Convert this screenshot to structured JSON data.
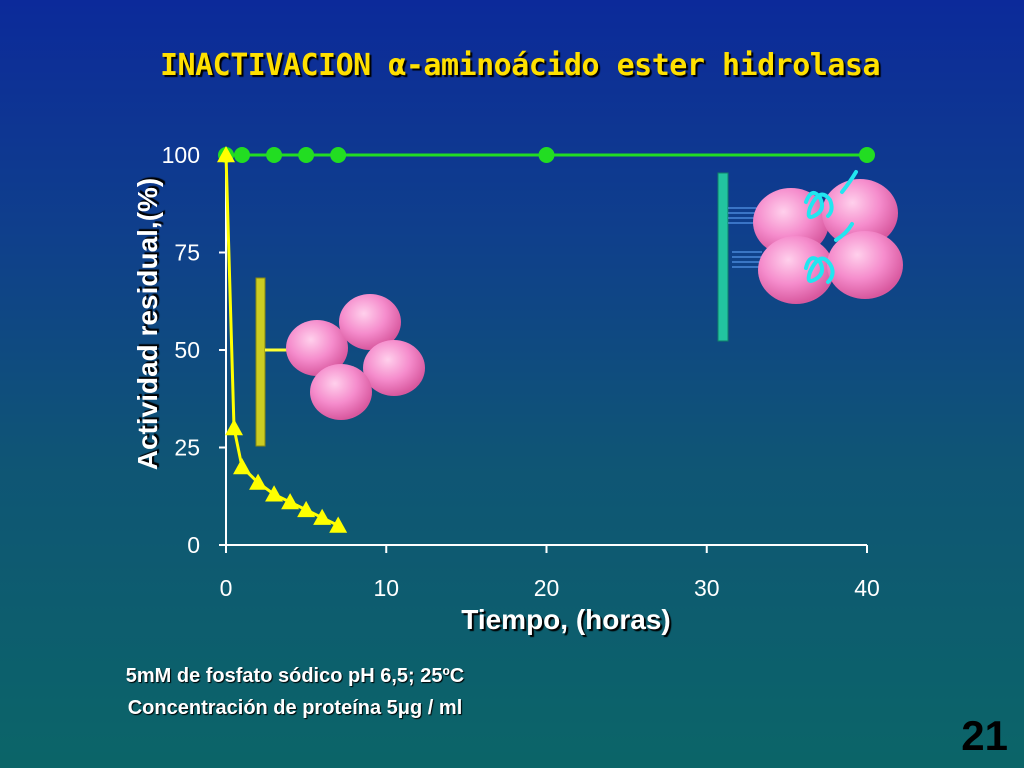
{
  "slide": {
    "title": "INACTIVACION α-aminoácido ester hidrolasa",
    "note_1": "5mM de fosfato sódico  pH 6,5; 25ºC",
    "note_2": "Concentración de proteína 5μg / ml",
    "slide_number": "21"
  },
  "colors": {
    "background_top": "#0c2a9a",
    "background_bottom": "#0b6568",
    "title": "#ffe000",
    "series_circle": "#22dd22",
    "series_triangle": "#ffff00",
    "subunit_pink": "#f080c0",
    "monomer_bar": "#cccc22",
    "tetramer_bar": "#22c4a0"
  },
  "chart_data": {
    "type": "line",
    "xlabel": "Tiempo, (horas)",
    "ylabel": "Actividad residual,(%)",
    "xlim": [
      0,
      40
    ],
    "ylim": [
      0,
      100
    ],
    "x_ticks": [
      "0",
      "10",
      "20",
      "30",
      "40"
    ],
    "y_ticks": [
      "0",
      "25",
      "50",
      "75",
      "100"
    ],
    "grid": false,
    "series": [
      {
        "marker": "circle",
        "color": "#22dd22",
        "x": [
          0,
          1,
          3,
          5,
          7,
          20,
          40
        ],
        "y": [
          100,
          100,
          100,
          100,
          100,
          100,
          100
        ]
      },
      {
        "marker": "triangle",
        "color": "#ffff00",
        "x": [
          0,
          0.5,
          1,
          2,
          3,
          4,
          5,
          6,
          7
        ],
        "y": [
          100,
          30,
          20,
          16,
          13,
          11,
          9,
          7,
          5
        ]
      }
    ]
  }
}
